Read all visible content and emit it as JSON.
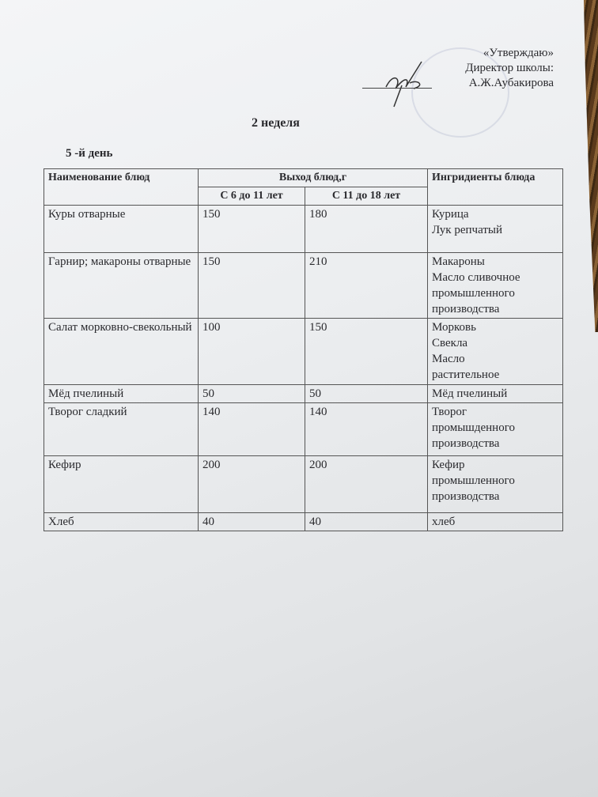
{
  "approval": {
    "line1": "«Утверждаю»",
    "line2": "Директор школы:",
    "line3": "А.Ж.Аубакирова"
  },
  "week": "2 неделя",
  "day": "5 -й  день",
  "table": {
    "headers": {
      "name": "Наименование блюд",
      "yield": "Выход блюд,г",
      "age1": "С 6 до 11 лет",
      "age2": "С 11 до 18 лет",
      "ingredients": "Ингридиенты блюда"
    },
    "rows": [
      {
        "name": "Куры отварные",
        "a": "150",
        "b": "180",
        "ingredients": [
          "Курица",
          "Лук репчатый"
        ]
      },
      {
        "name": "Гарнир; макароны отварные",
        "a": "150",
        "b": "210",
        "ingredients": [
          "Макароны",
          "Масло сливочное",
          "промышленного",
          "производства"
        ]
      },
      {
        "name": "Салат морковно-свекольный",
        "a": "100",
        "b": "150",
        "ingredients": [
          "Морковь",
          "Свекла",
          "Масло",
          "растительное"
        ]
      },
      {
        "name": "Мёд пчелиный",
        "a": "50",
        "b": "50",
        "ingredients": [
          "Мёд пчелиный"
        ]
      },
      {
        "name": "Творог сладкий",
        "a": "140",
        "b": "140",
        "ingredients": [
          "Творог",
          "промышденного",
          "производства"
        ]
      },
      {
        "name": "Кефир",
        "a": "200",
        "b": "200",
        "ingredients": [
          "Кефир",
          "промышленного",
          "производства"
        ]
      },
      {
        "name": "Хлеб",
        "a": "40",
        "b": "40",
        "ingredients": [
          "хлеб"
        ]
      }
    ]
  }
}
